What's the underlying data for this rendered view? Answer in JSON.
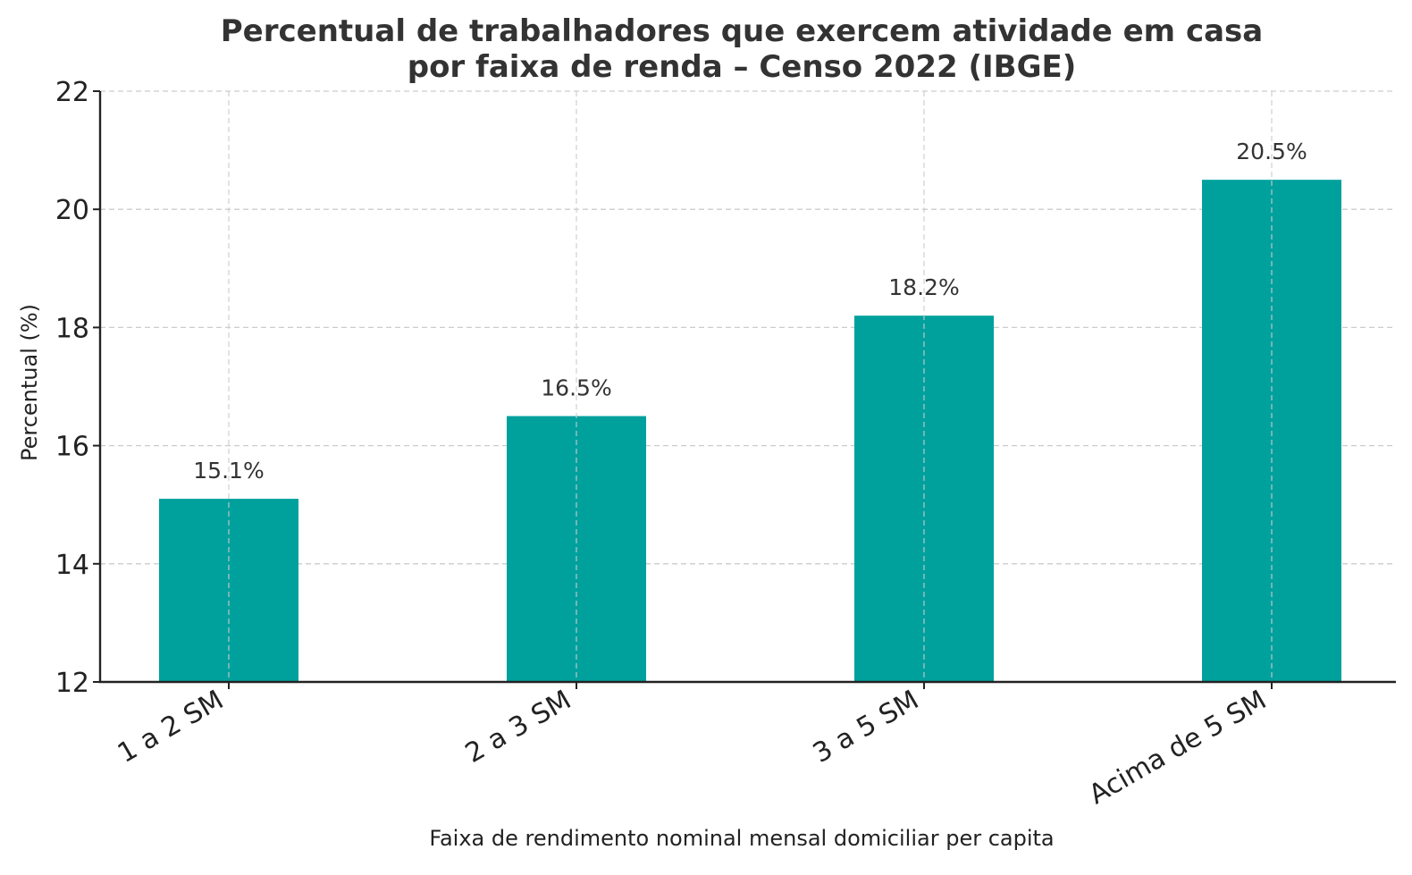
{
  "chart_data": {
    "type": "bar",
    "title": "Percentual de trabalhadores que exercem atividade em casa",
    "subtitle": "por faixa de renda – Censo 2022 (IBGE)",
    "xlabel": "Faixa de rendimento nominal mensal domiciliar per capita",
    "ylabel": "Percentual (%)",
    "categories": [
      "1 a 2 SM",
      "2 a 3 SM",
      "3 a 5 SM",
      "Acima de 5 SM"
    ],
    "values": [
      15.1,
      16.5,
      18.2,
      20.5
    ],
    "data_labels": [
      "15.1%",
      "16.5%",
      "18.2%",
      "20.5%"
    ],
    "ylim": [
      12,
      22
    ],
    "yticks": [
      12,
      14,
      16,
      18,
      20,
      22
    ],
    "ytick_labels": [
      "12",
      "14",
      "16",
      "18",
      "20",
      "22"
    ],
    "grid": true,
    "grid_style": "dashed",
    "legend": "none",
    "bar_color": "#00A19D",
    "grid_color": "#cccccc",
    "axis_color": "#222222",
    "xtick_rotation_deg": 30
  }
}
